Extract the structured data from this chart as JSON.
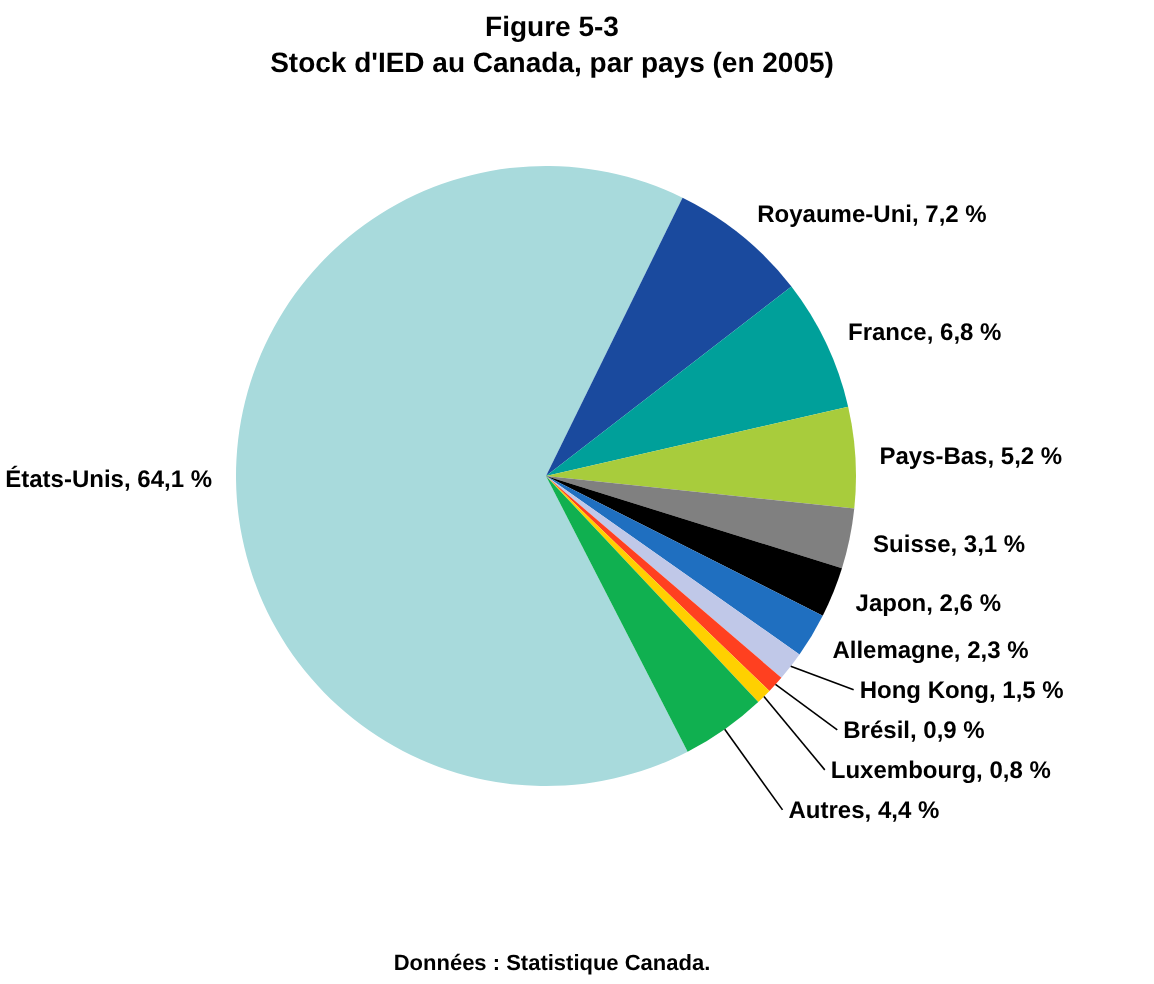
{
  "chart_data": {
    "type": "pie",
    "title": "Figure 5-3",
    "subtitle": "Stock d'IED au Canada, par pays (en 2005)",
    "categories": [
      "États-Unis",
      "Royaume-Uni",
      "France",
      "Pays-Bas",
      "Suisse",
      "Japon",
      "Allemagne",
      "Hong Kong",
      "Brésil",
      "Luxembourg",
      "Autres"
    ],
    "values": [
      64.1,
      7.2,
      6.8,
      5.2,
      3.1,
      2.6,
      2.3,
      1.5,
      0.9,
      0.8,
      4.4
    ],
    "value_labels": [
      "64,1 %",
      "7,2 %",
      "6,8 %",
      "5,2 %",
      "3,1 %",
      "2,6 %",
      "2,3 %",
      "1,5 %",
      "0,9 %",
      "0,8 %",
      "4,4 %"
    ],
    "colors": [
      "#a8dadc",
      "#1a4a9e",
      "#00a09a",
      "#a8cc3c",
      "#808080",
      "#000000",
      "#1f6fc0",
      "#c0c8e8",
      "#ff4020",
      "#ffd000",
      "#10b050"
    ],
    "annotations": [
      "Données : Statistique Canada."
    ]
  }
}
